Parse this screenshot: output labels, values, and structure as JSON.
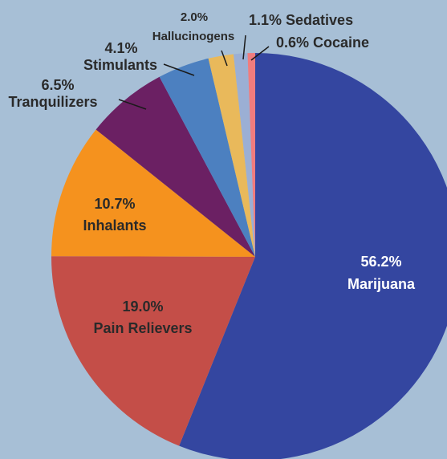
{
  "chart_data": {
    "type": "pie",
    "title": "",
    "slices": [
      {
        "category": "Marijuana",
        "value": 56.2,
        "label": "56.2%",
        "color": "#3446a0",
        "label_color": "#ffffff"
      },
      {
        "category": "Pain Relievers",
        "value": 19.0,
        "label": "19.0%",
        "color": "#c44e48",
        "label_color": "#2a2a2a"
      },
      {
        "category": "Inhalants",
        "value": 10.7,
        "label": "10.7%",
        "color": "#f5921e",
        "label_color": "#2a2a2a"
      },
      {
        "category": "Tranquilizers",
        "value": 6.5,
        "label": "6.5%",
        "color": "#6b2063",
        "label_color": "#2a2a2a"
      },
      {
        "category": "Stimulants",
        "value": 4.1,
        "label": "4.1%",
        "color": "#4c80c0",
        "label_color": "#2a2a2a"
      },
      {
        "category": "Hallucinogens",
        "value": 2.0,
        "label": "2.0%",
        "color": "#e9b95b",
        "label_color": "#2a2a2a"
      },
      {
        "category": "Sedatives",
        "value": 1.1,
        "label": "1.1%",
        "color": "#9bafd4",
        "label_color": "#2a2a2a"
      },
      {
        "category": "Cocaine",
        "value": 0.6,
        "label": "0.6%",
        "color": "#f07c7e",
        "label_color": "#2a2a2a"
      }
    ],
    "start_angle": "12 o'clock",
    "direction": "clockwise"
  }
}
